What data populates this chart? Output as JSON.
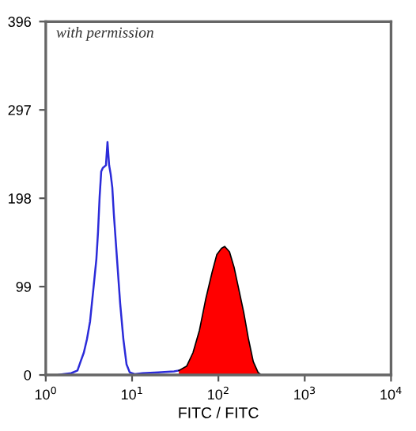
{
  "chart_data": {
    "type": "line",
    "xlabel": "FITC / FITC",
    "log": "x",
    "xlim": [
      1,
      10000
    ],
    "ylim": [
      0,
      396
    ],
    "xticks": [
      {
        "value": 1,
        "label": "10$^{0}$"
      },
      {
        "value": 10,
        "label": "10$^{1}$"
      },
      {
        "value": 100,
        "label": "10$^{2}$"
      },
      {
        "value": 1000,
        "label": "10$^{3}$"
      },
      {
        "value": 10000,
        "label": "10$^{4}$"
      }
    ],
    "yticks": [
      0,
      99,
      198,
      297,
      396
    ],
    "grid": false,
    "legend": false,
    "marker": "none",
    "annotations": [
      "with permission"
    ],
    "series": [
      {
        "color": "#2b2bd9",
        "x": [
          1.4,
          1.59,
          1.97,
          2.33,
          2.53,
          2.76,
          3.0,
          3.26,
          3.55,
          3.86,
          4.03,
          4.21,
          4.39,
          4.58,
          4.98,
          5.19,
          5.42,
          5.65,
          5.9,
          6.15,
          6.69,
          7.28,
          7.93,
          8.62,
          9.38,
          10.7,
          13.2,
          20.1,
          30.6,
          34.8
        ],
        "values": [
          0,
          1,
          2,
          5,
          15,
          25,
          40,
          60,
          95,
          130,
          160,
          200,
          228,
          232,
          235,
          261,
          235,
          225,
          210,
          180,
          130,
          80,
          40,
          12,
          3,
          1,
          2,
          3,
          4,
          5
        ]
      },
      {
        "type": "area",
        "color": "#ff0000",
        "x": [
          34.8,
          43.0,
          50.8,
          60.3,
          71.3,
          84.5,
          95.9,
          108.8,
          118.4,
          134.4,
          152.5,
          173.2,
          196.6,
          223.4,
          253.5,
          287.7,
          312.7
        ],
        "values": [
          5,
          10,
          25,
          50,
          85,
          115,
          135,
          142,
          144,
          138,
          120,
          95,
          70,
          40,
          15,
          3,
          0
        ]
      }
    ]
  }
}
